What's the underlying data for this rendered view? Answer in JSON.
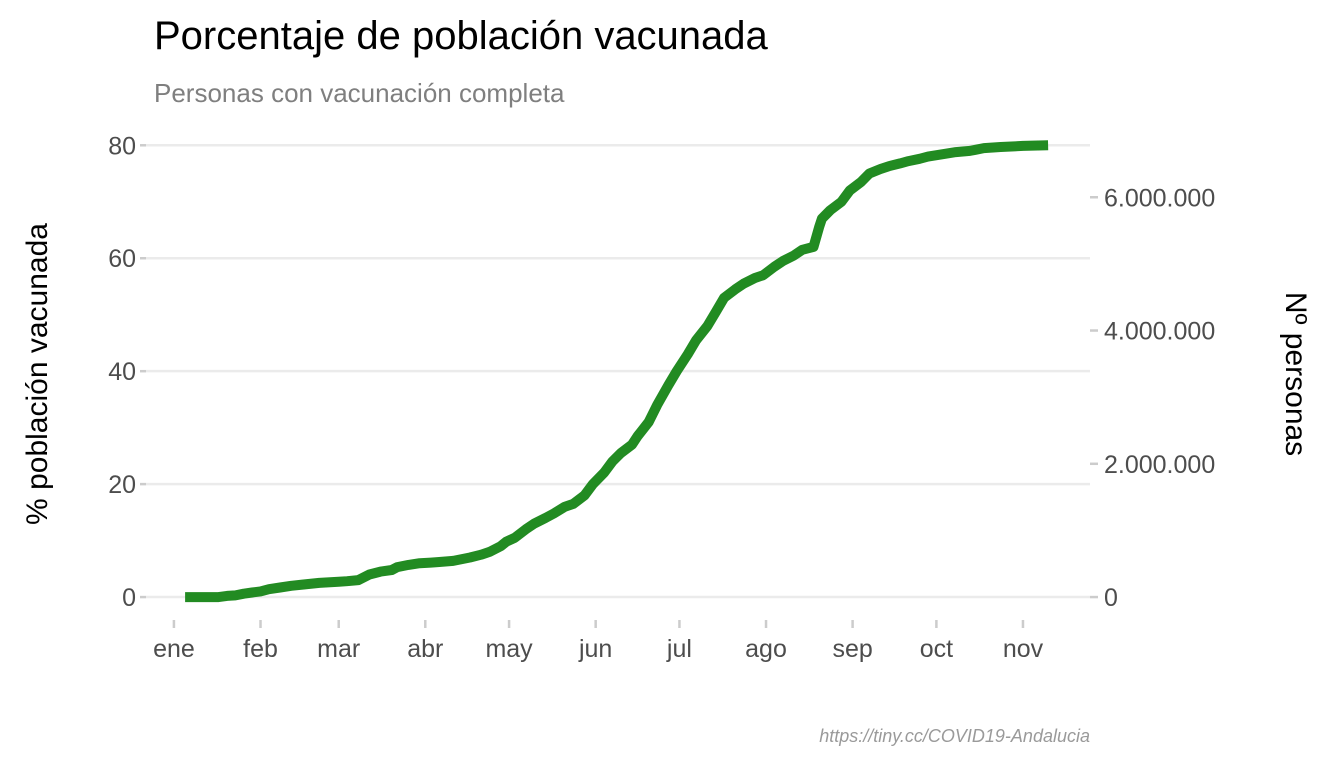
{
  "chart_data": {
    "type": "line",
    "title": "Porcentaje de población vacunada",
    "subtitle": "Personas con vacunación completa",
    "caption": "https://tiny.cc/COVID19-Andalucia",
    "ylabel": "% población vacunada",
    "y2label": "Nº personas",
    "ylim": [
      -3,
      82
    ],
    "y_ticks": [
      0,
      20,
      40,
      60,
      80
    ],
    "y2_ticks": [
      {
        "value": 0,
        "label": "0"
      },
      {
        "value": 2000000,
        "label": "2.000.000"
      },
      {
        "value": 4000000,
        "label": "4.000.000"
      },
      {
        "value": 6000000,
        "label": "6.000.000"
      }
    ],
    "y2_per_percent": 84750,
    "xlim": [
      -10,
      328
    ],
    "x_ticks": [
      {
        "day": 0,
        "label": "ene"
      },
      {
        "day": 31,
        "label": "feb"
      },
      {
        "day": 59,
        "label": "mar"
      },
      {
        "day": 90,
        "label": "abr"
      },
      {
        "day": 120,
        "label": "may"
      },
      {
        "day": 151,
        "label": "jun"
      },
      {
        "day": 181,
        "label": "jul"
      },
      {
        "day": 212,
        "label": "ago"
      },
      {
        "day": 243,
        "label": "sep"
      },
      {
        "day": 273,
        "label": "oct"
      },
      {
        "day": 304,
        "label": "nov"
      }
    ],
    "grid": true,
    "line_color": "#228b22",
    "series": [
      {
        "x": [
          4,
          10,
          16,
          19,
          22,
          25,
          28,
          31,
          34,
          38,
          42,
          46,
          52,
          59,
          62,
          66,
          70,
          74,
          78,
          80,
          84,
          88,
          92,
          95,
          100,
          106,
          110,
          113,
          117,
          119,
          122,
          126,
          129,
          133,
          136,
          140,
          143,
          147,
          150,
          154,
          157,
          160,
          164,
          166,
          170,
          173,
          177,
          180,
          184,
          187,
          191,
          194,
          197,
          201,
          204,
          208,
          211,
          215,
          218,
          222,
          225,
          229,
          231,
          232,
          235,
          239,
          242,
          246,
          249,
          253,
          256,
          260,
          263,
          267,
          270,
          275,
          280,
          285,
          287,
          290,
          296,
          304,
          313
        ],
        "y": [
          0,
          0,
          0,
          0.2,
          0.3,
          0.6,
          0.8,
          1.0,
          1.4,
          1.7,
          2.0,
          2.2,
          2.5,
          2.7,
          2.8,
          3.0,
          4.0,
          4.5,
          4.8,
          5.3,
          5.7,
          6.0,
          6.1,
          6.2,
          6.4,
          7.0,
          7.5,
          8.0,
          9.0,
          9.8,
          10.5,
          12.0,
          13.0,
          14.0,
          14.8,
          16.0,
          16.5,
          18.0,
          20.0,
          22.0,
          24.0,
          25.5,
          27.0,
          28.5,
          31.0,
          34.0,
          37.5,
          40.0,
          43.0,
          45.5,
          48.0,
          50.5,
          53.0,
          54.5,
          55.5,
          56.5,
          57.0,
          58.5,
          59.5,
          60.5,
          61.5,
          62.0,
          65.5,
          67.0,
          68.5,
          70.0,
          72.0,
          73.5,
          75.0,
          75.8,
          76.3,
          76.8,
          77.2,
          77.6,
          78.0,
          78.4,
          78.8,
          79.0,
          79.2,
          79.5,
          79.7,
          79.9,
          80.0
        ]
      }
    ]
  }
}
